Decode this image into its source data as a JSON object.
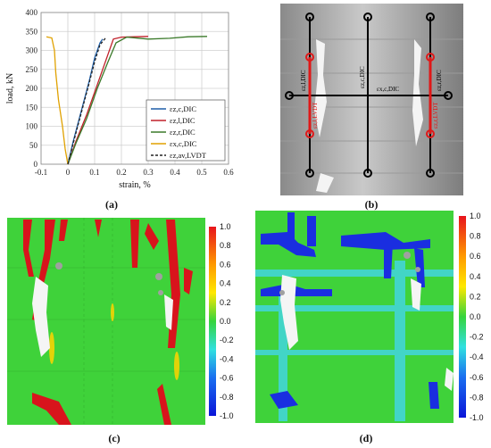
{
  "figure": {
    "captions": {
      "a": "(a)",
      "b": "(b)",
      "c": "(c)",
      "d": "(d)"
    }
  },
  "chart_data": {
    "type": "line",
    "xlabel": "strain, %",
    "ylabel": "load, kN",
    "xlim": [
      -0.1,
      0.6
    ],
    "ylim": [
      0,
      400
    ],
    "xticks": [
      "-0.1",
      "0",
      "0.1",
      "0.2",
      "0.3",
      "0.4",
      "0.5",
      "0.6"
    ],
    "yticks": [
      "0",
      "50",
      "100",
      "150",
      "200",
      "250",
      "300",
      "350",
      "400"
    ],
    "grid": true,
    "legend_position": "bottom-right",
    "series": [
      {
        "name": "εz,c,DIC",
        "color": "#1f5fa8",
        "dash": false,
        "x": [
          0,
          0.02,
          0.05,
          0.08,
          0.1,
          0.12,
          0.13
        ],
        "y": [
          0,
          60,
          140,
          220,
          280,
          320,
          330
        ]
      },
      {
        "name": "εz,l,DIC",
        "color": "#c0202a",
        "dash": false,
        "x": [
          0,
          0.03,
          0.07,
          0.11,
          0.15,
          0.17,
          0.2,
          0.25,
          0.3
        ],
        "y": [
          0,
          60,
          130,
          210,
          290,
          330,
          335,
          336,
          337
        ]
      },
      {
        "name": "εz,r,DIC",
        "color": "#3b7a2a",
        "dash": false,
        "x": [
          0,
          0.03,
          0.07,
          0.11,
          0.15,
          0.18,
          0.22,
          0.3,
          0.38,
          0.45,
          0.52
        ],
        "y": [
          0,
          55,
          120,
          200,
          270,
          320,
          335,
          330,
          332,
          336,
          337
        ]
      },
      {
        "name": "εx,c,DIC",
        "color": "#e0a100",
        "dash": false,
        "x": [
          -0.08,
          -0.06,
          -0.05,
          -0.045,
          -0.035,
          -0.02,
          -0.01,
          0
        ],
        "y": [
          336,
          333,
          300,
          240,
          170,
          100,
          40,
          0
        ]
      },
      {
        "name": "εz,av,LVDT",
        "color": "#222222",
        "dash": true,
        "x": [
          0,
          0.02,
          0.05,
          0.08,
          0.1,
          0.12,
          0.14
        ],
        "y": [
          0,
          55,
          135,
          215,
          270,
          315,
          332
        ]
      }
    ]
  },
  "photo_b": {
    "labels": {
      "left": "εz,l,DIC",
      "left_lvdt": "εz,l,LVDT",
      "center": "εz,c,DIC",
      "horizontal": "εx,c,DIC",
      "right": "εz,r,DIC",
      "right_lvdt": "εz,r,LVDT"
    }
  },
  "colorbar": {
    "ticks": [
      "1.0",
      "0.8",
      "0.6",
      "0.4",
      "0.2",
      "0.0",
      "-0.2",
      "-0.4",
      "-0.6",
      "-0.8",
      "-1.0"
    ]
  },
  "colors": {
    "field_green": "#3fd23a",
    "field_cyan": "#43d6d6",
    "crack_red": "#d8141c",
    "crack_blue": "#1a2ee0"
  }
}
